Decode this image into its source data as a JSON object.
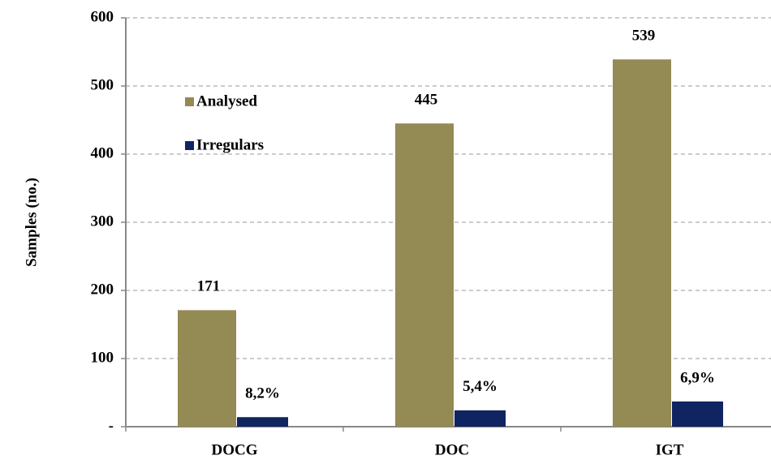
{
  "chart_data": {
    "type": "bar",
    "y_axis_label": "Samples (no.)",
    "categories": [
      "DOCG",
      "DOC",
      "IGT"
    ],
    "series": [
      {
        "name": "Analysed",
        "color": "#948a54",
        "values": [
          171,
          445,
          539
        ]
      },
      {
        "name": "Irregulars",
        "color": "#0f2461",
        "values": [
          14,
          24,
          37
        ],
        "annotations": [
          "8,2%",
          "5,4%",
          "6,9%"
        ]
      }
    ],
    "ylim": [
      0,
      600
    ],
    "yticks": [
      {
        "value": 0,
        "label": "-"
      },
      100,
      200,
      300,
      400,
      500,
      600
    ],
    "grid": true
  }
}
